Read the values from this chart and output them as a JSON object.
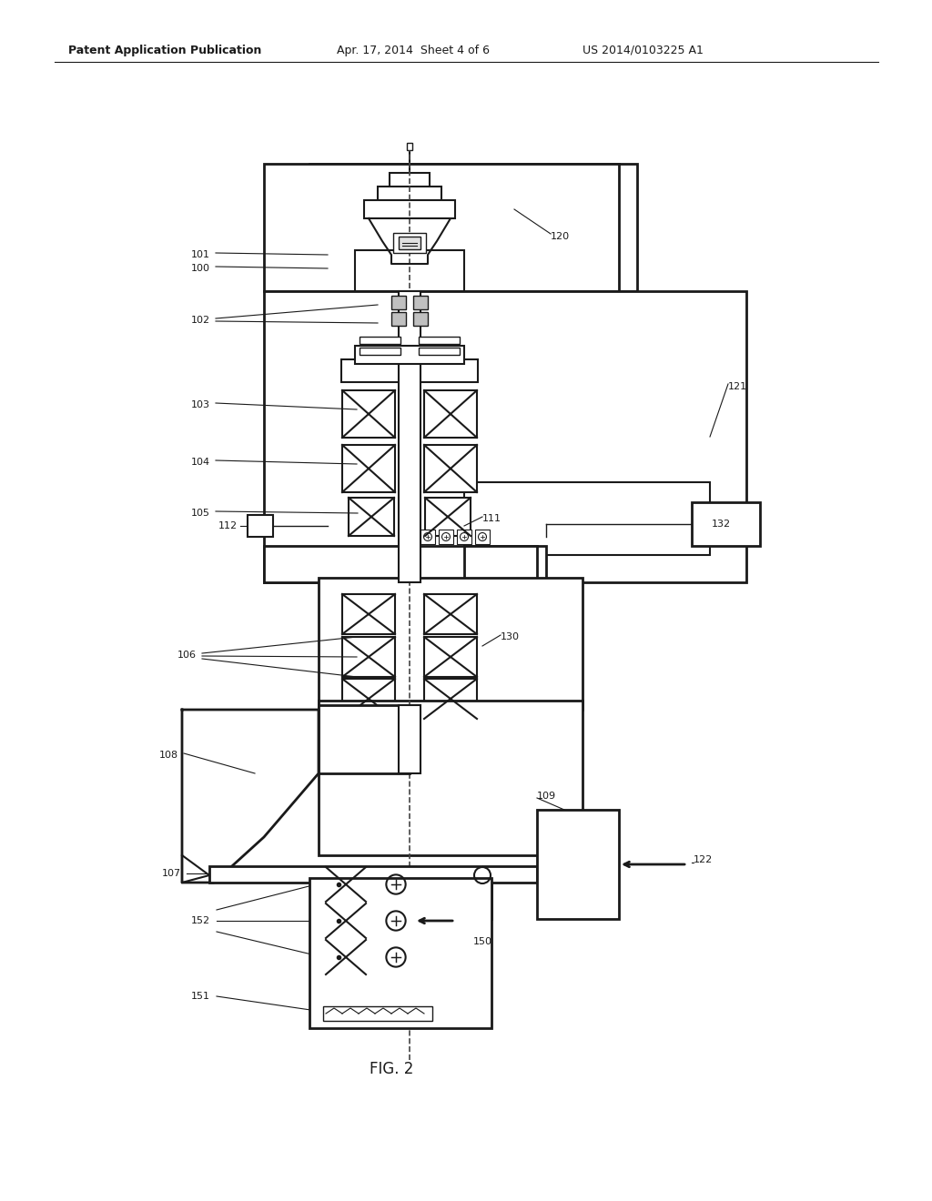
{
  "bg_color": "#ffffff",
  "line_color": "#1a1a1a",
  "header_text1": "Patent Application Publication",
  "header_text2": "Apr. 17, 2014  Sheet 4 of 6",
  "header_text3": "US 2014/0103225 A1",
  "caption": "FIG. 2"
}
